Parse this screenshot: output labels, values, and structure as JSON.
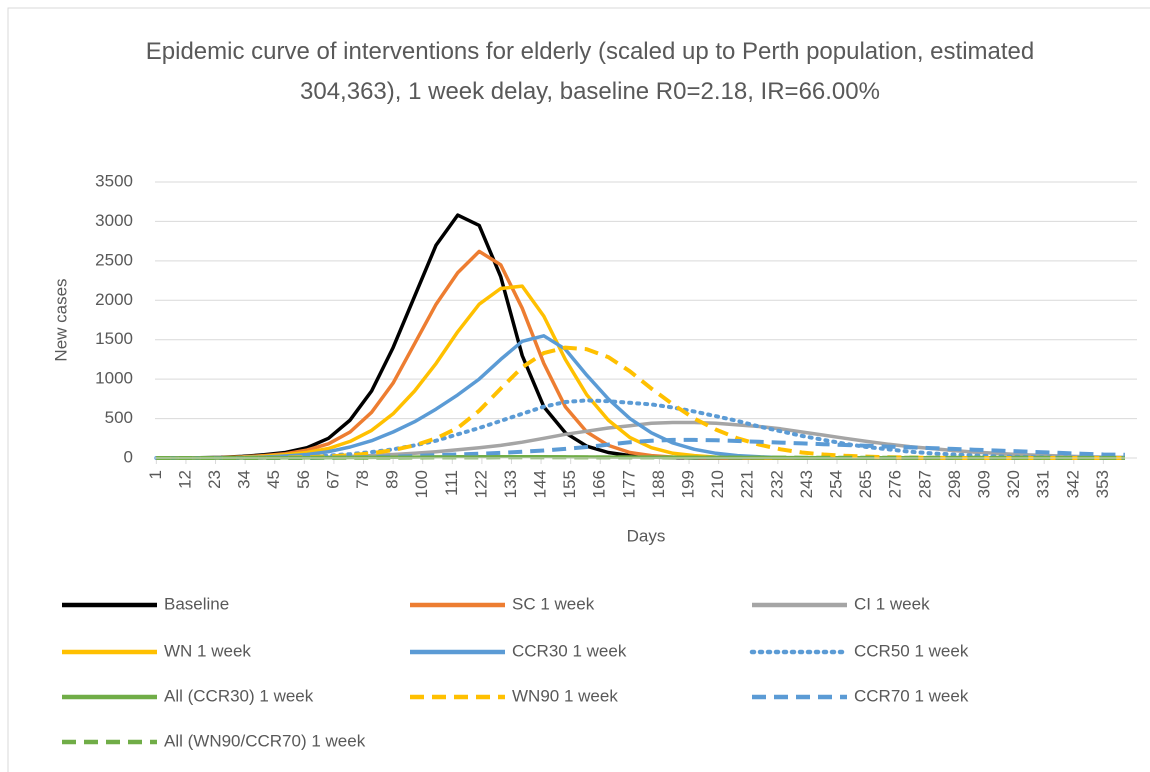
{
  "chart_data": {
    "type": "line",
    "title": "Epidemic curve of interventions for elderly (scaled up to Perth population, estimated 304,363), 1 week delay, baseline R0=2.18, IR=66.00%",
    "x_label": "Days",
    "y_label": "New cases",
    "x": [
      1,
      9,
      17,
      25,
      33,
      41,
      49,
      57,
      65,
      73,
      81,
      89,
      97,
      105,
      113,
      121,
      129,
      137,
      145,
      153,
      161,
      169,
      177,
      185,
      193,
      201,
      209,
      217,
      225,
      233,
      241,
      249,
      257,
      265,
      273,
      281,
      289,
      297,
      305,
      313,
      321,
      329,
      337,
      345,
      353,
      361
    ],
    "xlim": [
      0.5,
      365.5
    ],
    "xticks": [
      1,
      12,
      23,
      34,
      45,
      56,
      67,
      78,
      89,
      100,
      111,
      122,
      133,
      144,
      155,
      166,
      177,
      188,
      199,
      210,
      221,
      232,
      243,
      254,
      265,
      276,
      287,
      298,
      309,
      320,
      331,
      342,
      353
    ],
    "ylim": [
      0,
      3500
    ],
    "yticks": [
      0,
      500,
      1000,
      1500,
      2000,
      2500,
      3000,
      3500
    ],
    "grid": true,
    "series": [
      {
        "name": "Baseline",
        "color": "#000000",
        "dash": "solid",
        "values": [
          0,
          0,
          2,
          8,
          20,
          40,
          70,
          130,
          250,
          480,
          850,
          1400,
          2050,
          2700,
          3080,
          2950,
          2300,
          1300,
          650,
          320,
          150,
          70,
          30,
          12,
          5,
          0,
          0,
          0,
          0,
          0,
          0,
          0,
          0,
          0,
          0,
          0,
          0,
          0,
          0,
          0,
          0,
          0,
          0,
          0,
          0,
          0
        ]
      },
      {
        "name": "SC 1 week",
        "color": "#ed7d31",
        "dash": "solid",
        "values": [
          0,
          0,
          1,
          5,
          14,
          30,
          55,
          100,
          180,
          330,
          580,
          950,
          1450,
          1950,
          2350,
          2620,
          2450,
          1900,
          1200,
          650,
          330,
          160,
          70,
          30,
          12,
          5,
          0,
          0,
          0,
          0,
          0,
          0,
          0,
          0,
          0,
          0,
          0,
          0,
          0,
          0,
          0,
          0,
          0,
          0,
          0,
          0
        ]
      },
      {
        "name": "CI 1 week",
        "color": "#a5a5a5",
        "dash": "solid",
        "values": [
          0,
          0,
          0,
          0,
          0,
          0,
          5,
          8,
          12,
          20,
          30,
          45,
          60,
          80,
          105,
          130,
          160,
          200,
          250,
          300,
          340,
          380,
          410,
          440,
          450,
          450,
          440,
          420,
          400,
          370,
          330,
          290,
          250,
          210,
          175,
          145,
          120,
          95,
          75,
          60,
          45,
          35,
          25,
          18,
          12,
          8
        ]
      },
      {
        "name": "WN 1 week",
        "color": "#ffc000",
        "dash": "solid",
        "values": [
          0,
          0,
          0,
          3,
          10,
          22,
          40,
          70,
          120,
          210,
          350,
          560,
          850,
          1200,
          1600,
          1950,
          2150,
          2180,
          1800,
          1250,
          800,
          480,
          260,
          130,
          60,
          30,
          12,
          5,
          0,
          0,
          0,
          0,
          0,
          0,
          0,
          0,
          0,
          0,
          0,
          0,
          0,
          0,
          0,
          0,
          0,
          0
        ]
      },
      {
        "name": "CCR30 1 week",
        "color": "#5b9bd5",
        "dash": "solid",
        "values": [
          0,
          0,
          0,
          2,
          5,
          12,
          25,
          45,
          80,
          140,
          220,
          330,
          460,
          620,
          800,
          1000,
          1250,
          1480,
          1550,
          1380,
          1050,
          750,
          500,
          320,
          190,
          110,
          60,
          30,
          15,
          5,
          0,
          0,
          0,
          0,
          0,
          0,
          0,
          0,
          0,
          0,
          0,
          0,
          0,
          0,
          0,
          0
        ]
      },
      {
        "name": "CCR50 1 week",
        "color": "#5b9bd5",
        "dash": "dotted",
        "values": [
          0,
          0,
          0,
          0,
          0,
          5,
          10,
          18,
          30,
          50,
          75,
          110,
          160,
          220,
          300,
          380,
          470,
          560,
          650,
          710,
          730,
          720,
          700,
          680,
          640,
          590,
          530,
          470,
          400,
          340,
          280,
          230,
          180,
          140,
          110,
          80,
          60,
          45,
          30,
          22,
          15,
          10,
          6,
          4,
          2,
          1
        ]
      },
      {
        "name": "All (CCR30) 1 week",
        "color": "#70ad47",
        "dash": "solid",
        "values": [
          0,
          0,
          0,
          0,
          1,
          2,
          3,
          4,
          5,
          6,
          8,
          10,
          12,
          14,
          15,
          16,
          16,
          16,
          15,
          14,
          13,
          12,
          11,
          10,
          9,
          8,
          7,
          6,
          6,
          5,
          5,
          4,
          4,
          3,
          3,
          3,
          2,
          2,
          2,
          2,
          1,
          1,
          1,
          1,
          1,
          1
        ]
      },
      {
        "name": "WN90 1 week",
        "color": "#ffc000",
        "dash": "dashed",
        "values": [
          0,
          0,
          0,
          0,
          0,
          0,
          5,
          10,
          20,
          35,
          60,
          100,
          160,
          250,
          380,
          600,
          880,
          1150,
          1330,
          1400,
          1380,
          1280,
          1100,
          880,
          680,
          500,
          360,
          250,
          170,
          110,
          70,
          45,
          28,
          18,
          10,
          6,
          3,
          0,
          0,
          0,
          0,
          0,
          0,
          0,
          0,
          0
        ]
      },
      {
        "name": "CCR70 1 week",
        "color": "#5b9bd5",
        "dash": "dashed",
        "values": [
          0,
          0,
          0,
          0,
          0,
          0,
          0,
          0,
          5,
          8,
          12,
          18,
          25,
          35,
          45,
          55,
          65,
          80,
          95,
          115,
          140,
          170,
          200,
          220,
          230,
          230,
          225,
          215,
          205,
          195,
          185,
          175,
          165,
          155,
          145,
          135,
          125,
          115,
          105,
          95,
          85,
          75,
          65,
          55,
          45,
          40
        ]
      },
      {
        "name": "All (WN90/CCR70) 1 week",
        "color": "#70ad47",
        "dash": "dashed",
        "values": [
          0,
          0,
          0,
          0,
          0,
          1,
          1,
          2,
          2,
          3,
          4,
          5,
          6,
          7,
          8,
          8,
          9,
          9,
          9,
          9,
          8,
          8,
          8,
          7,
          7,
          6,
          6,
          5,
          5,
          5,
          4,
          4,
          4,
          3,
          3,
          3,
          3,
          2,
          2,
          2,
          2,
          2,
          1,
          1,
          1,
          1
        ]
      }
    ]
  }
}
